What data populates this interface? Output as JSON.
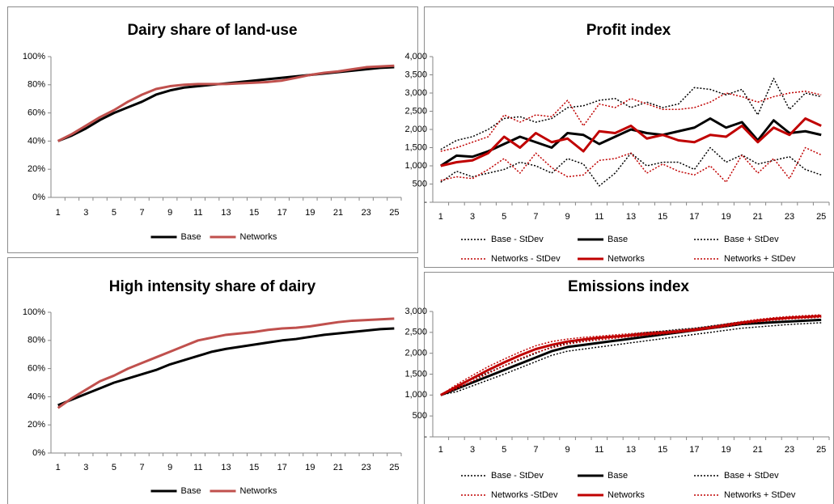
{
  "chart_data": [
    {
      "type": "line",
      "title": "Dairy share of land-use",
      "categories": [
        1,
        null,
        3,
        null,
        5,
        null,
        7,
        null,
        9,
        null,
        11,
        null,
        13,
        null,
        15,
        null,
        17,
        null,
        19,
        null,
        21,
        null,
        23,
        null,
        25
      ],
      "ylim": [
        0,
        100
      ],
      "yticks": [
        {
          "value": 0,
          "label": "0%"
        },
        {
          "value": 20,
          "label": "20%"
        },
        {
          "value": 40,
          "label": "40%"
        },
        {
          "value": 60,
          "label": "60%"
        },
        {
          "value": 80,
          "label": "80%"
        },
        {
          "value": 100,
          "label": "100%"
        }
      ],
      "grid": false,
      "legend": "bottom",
      "series": [
        {
          "name": "Base",
          "color": "#000000",
          "line_style": "solid",
          "values": [
            40,
            44,
            49,
            55,
            60,
            64,
            68,
            73,
            76,
            78,
            79,
            80,
            81,
            82,
            83,
            84,
            85,
            86,
            87,
            88,
            89,
            90,
            91,
            92,
            92.5
          ]
        },
        {
          "name": "Networks",
          "color": "#c0504d",
          "line_style": "solid",
          "values": [
            40,
            45,
            51,
            57,
            62,
            68,
            73,
            77,
            79,
            80,
            80.5,
            80.5,
            80.5,
            81,
            81.5,
            82,
            83,
            85,
            87,
            88.5,
            89.5,
            91,
            92.5,
            93,
            93.5
          ]
        }
      ]
    },
    {
      "type": "line",
      "title": "Profit index",
      "categories": [
        1,
        null,
        3,
        null,
        5,
        null,
        7,
        null,
        9,
        null,
        11,
        null,
        13,
        null,
        15,
        null,
        17,
        null,
        19,
        null,
        21,
        null,
        23,
        null,
        25
      ],
      "ylim": [
        0,
        4000
      ],
      "yticks": [
        {
          "value": 0,
          "label": "-"
        },
        500,
        {
          "value": 1000,
          "label": "1,000"
        },
        {
          "value": 1500,
          "label": "1,500"
        },
        {
          "value": 2000,
          "label": "2,000"
        },
        {
          "value": 2500,
          "label": "2,500"
        },
        {
          "value": 3000,
          "label": "3,000"
        },
        {
          "value": 3500,
          "label": "3,500"
        },
        {
          "value": 4000,
          "label": "4,000"
        }
      ],
      "grid": false,
      "legend": "bottom",
      "series": [
        {
          "name": "Base - StDev",
          "color": "#000000",
          "line_style": "dotted",
          "values": [
            550,
            850,
            700,
            800,
            900,
            1100,
            1000,
            800,
            1200,
            1050,
            450,
            800,
            1350,
            1000,
            1100,
            1100,
            900,
            1500,
            1100,
            1300,
            1050,
            1150,
            1250,
            900,
            750
          ]
        },
        {
          "name": "Base",
          "color": "#000000",
          "line_style": "solid",
          "values": [
            1000,
            1280,
            1250,
            1400,
            1600,
            1800,
            1650,
            1500,
            1900,
            1850,
            1600,
            1800,
            2000,
            1900,
            1850,
            1950,
            2050,
            2300,
            2050,
            2200,
            1700,
            2250,
            1900,
            1950,
            1850
          ]
        },
        {
          "name": "Base + StDev",
          "color": "#000000",
          "line_style": "dotted",
          "values": [
            1450,
            1700,
            1800,
            2000,
            2300,
            2350,
            2200,
            2300,
            2600,
            2650,
            2800,
            2850,
            2600,
            2750,
            2600,
            2700,
            3150,
            3100,
            2950,
            3100,
            2400,
            3400,
            2550,
            3000,
            2900
          ]
        },
        {
          "name": "Networks - StDev",
          "color": "#c00000",
          "line_style": "dotted",
          "values": [
            600,
            700,
            650,
            900,
            1200,
            800,
            1350,
            950,
            700,
            750,
            1150,
            1200,
            1350,
            800,
            1050,
            850,
            750,
            1000,
            550,
            1300,
            800,
            1200,
            650,
            1500,
            1300
          ]
        },
        {
          "name": "Networks",
          "color": "#c00000",
          "line_style": "solid",
          "values": [
            1000,
            1100,
            1150,
            1350,
            1800,
            1500,
            1900,
            1650,
            1750,
            1400,
            1950,
            1900,
            2100,
            1750,
            1850,
            1700,
            1650,
            1850,
            1800,
            2100,
            1650,
            2050,
            1850,
            2300,
            2100
          ]
        },
        {
          "name": "Networks + StDev",
          "color": "#c00000",
          "line_style": "dotted",
          "values": [
            1400,
            1500,
            1650,
            1800,
            2400,
            2200,
            2400,
            2350,
            2800,
            2100,
            2700,
            2600,
            2850,
            2700,
            2550,
            2550,
            2600,
            2750,
            3000,
            2900,
            2750,
            2900,
            3000,
            3050,
            2950
          ]
        }
      ]
    },
    {
      "type": "line",
      "title": "High intensity share of dairy",
      "categories": [
        1,
        null,
        3,
        null,
        5,
        null,
        7,
        null,
        9,
        null,
        11,
        null,
        13,
        null,
        15,
        null,
        17,
        null,
        19,
        null,
        21,
        null,
        23,
        null,
        25
      ],
      "ylim": [
        0,
        100
      ],
      "yticks": [
        {
          "value": 0,
          "label": "0%"
        },
        {
          "value": 20,
          "label": "20%"
        },
        {
          "value": 40,
          "label": "40%"
        },
        {
          "value": 60,
          "label": "60%"
        },
        {
          "value": 80,
          "label": "80%"
        },
        {
          "value": 100,
          "label": "100%"
        }
      ],
      "grid": false,
      "legend": "bottom",
      "series": [
        {
          "name": "Base",
          "color": "#000000",
          "line_style": "solid",
          "values": [
            34,
            38,
            42,
            46,
            50,
            53,
            56,
            59,
            63,
            66,
            69,
            72,
            74,
            75.5,
            77,
            78.5,
            80,
            81,
            82.5,
            84,
            85,
            86,
            87,
            88,
            88.5
          ]
        },
        {
          "name": "Networks",
          "color": "#c0504d",
          "line_style": "solid",
          "values": [
            32,
            39,
            45,
            51,
            55,
            60,
            64,
            68,
            72,
            76,
            80,
            82,
            84,
            85,
            86,
            87.5,
            88.5,
            89,
            90,
            91.5,
            93,
            94,
            94.5,
            95,
            95.5
          ]
        }
      ]
    },
    {
      "type": "line",
      "title": "Emissions index",
      "categories": [
        1,
        null,
        3,
        null,
        5,
        null,
        7,
        null,
        9,
        null,
        11,
        null,
        13,
        null,
        15,
        null,
        17,
        null,
        19,
        null,
        21,
        null,
        23,
        null,
        25
      ],
      "ylim": [
        0,
        3000
      ],
      "yticks": [
        {
          "value": 0,
          "label": "-"
        },
        500,
        {
          "value": 1000,
          "label": "1,000"
        },
        {
          "value": 1500,
          "label": "1,500"
        },
        {
          "value": 2000,
          "label": "2,000"
        },
        {
          "value": 2500,
          "label": "2,500"
        },
        {
          "value": 3000,
          "label": "3,000"
        }
      ],
      "grid": false,
      "legend": "bottom",
      "series": [
        {
          "name": "Base - StDev",
          "color": "#000000",
          "line_style": "dotted",
          "values": [
            1000,
            1080,
            1220,
            1360,
            1500,
            1650,
            1800,
            1950,
            2050,
            2100,
            2150,
            2200,
            2250,
            2300,
            2350,
            2400,
            2450,
            2500,
            2550,
            2600,
            2630,
            2660,
            2690,
            2710,
            2730
          ]
        },
        {
          "name": "Base",
          "color": "#000000",
          "line_style": "solid",
          "values": [
            1000,
            1150,
            1300,
            1450,
            1600,
            1750,
            1900,
            2050,
            2150,
            2200,
            2250,
            2300,
            2350,
            2400,
            2450,
            2500,
            2550,
            2600,
            2650,
            2700,
            2720,
            2740,
            2760,
            2780,
            2800
          ]
        },
        {
          "name": "Base + StDev",
          "color": "#000000",
          "line_style": "dotted",
          "values": [
            1000,
            1220,
            1380,
            1540,
            1700,
            1850,
            2000,
            2150,
            2250,
            2300,
            2350,
            2400,
            2450,
            2500,
            2530,
            2570,
            2600,
            2650,
            2700,
            2750,
            2780,
            2810,
            2840,
            2860,
            2880
          ]
        },
        {
          "name": "Networks -StDev",
          "color": "#c00000",
          "line_style": "dotted",
          "values": [
            1000,
            1150,
            1330,
            1520,
            1700,
            1870,
            2020,
            2130,
            2220,
            2280,
            2320,
            2360,
            2400,
            2430,
            2460,
            2500,
            2540,
            2590,
            2640,
            2700,
            2750,
            2790,
            2820,
            2840,
            2860
          ]
        },
        {
          "name": "Networks",
          "color": "#c00000",
          "line_style": "solid",
          "values": [
            1000,
            1200,
            1400,
            1600,
            1780,
            1950,
            2100,
            2200,
            2280,
            2330,
            2370,
            2400,
            2430,
            2460,
            2490,
            2520,
            2560,
            2610,
            2670,
            2730,
            2780,
            2820,
            2850,
            2870,
            2890
          ]
        },
        {
          "name": "Networks + StDev",
          "color": "#c00000",
          "line_style": "dotted",
          "values": [
            1000,
            1250,
            1470,
            1680,
            1860,
            2030,
            2180,
            2280,
            2340,
            2380,
            2410,
            2440,
            2470,
            2500,
            2520,
            2550,
            2590,
            2640,
            2700,
            2760,
            2810,
            2850,
            2880,
            2900,
            2920
          ]
        }
      ]
    }
  ]
}
